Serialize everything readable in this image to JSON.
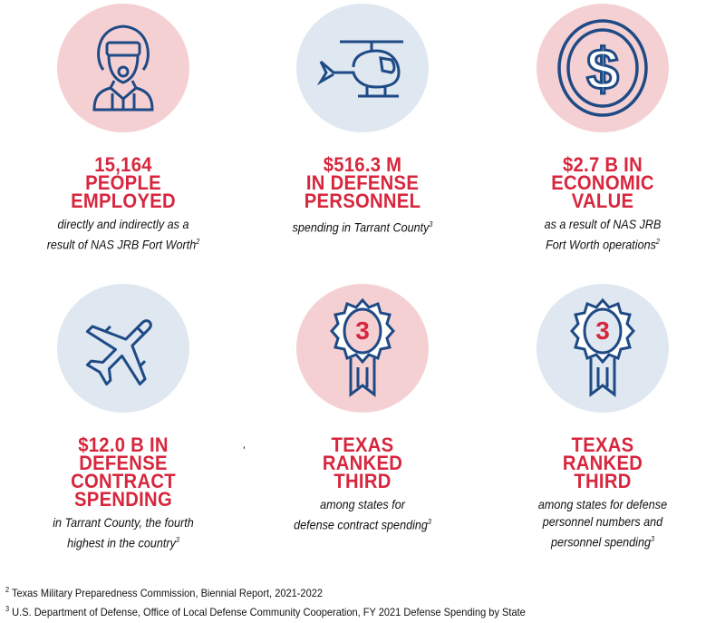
{
  "colors": {
    "pink": "#f5d0d3",
    "blue": "#dfe7f0",
    "navy": "#1e4a85",
    "red": "#d7263d"
  },
  "stats": [
    {
      "icon": "pilot-icon",
      "heading": [
        "15,164",
        "PEOPLE",
        "EMPLOYED"
      ],
      "text": [
        "directly and indirectly as a",
        "result of NAS JRB Fort Worth"
      ],
      "ref": "2"
    },
    {
      "icon": "helicopter-icon",
      "heading": [
        "$516.3 M",
        "IN DEFENSE",
        "PERSONNEL"
      ],
      "text": [
        "spending in Tarrant County"
      ],
      "ref": "3"
    },
    {
      "icon": "dollar-coin-icon",
      "heading": [
        "$2.7 B IN",
        "ECONOMIC",
        "VALUE"
      ],
      "text": [
        "as a result of NAS JRB",
        "Fort Worth operations"
      ],
      "ref": "2"
    },
    {
      "icon": "airplane-icon",
      "heading": [
        "$12.0 B IN",
        "DEFENSE",
        "CONTRACT",
        "SPENDING"
      ],
      "text": [
        "in Tarrant County, the fourth",
        "highest in the country"
      ],
      "ref": "3"
    },
    {
      "icon": "ribbon-award-icon",
      "badge": "3",
      "heading": [
        "TEXAS",
        "RANKED",
        "THIRD"
      ],
      "text": [
        "among states for",
        "defense contract spending"
      ],
      "ref": "3"
    },
    {
      "icon": "ribbon-award-icon",
      "badge": "3",
      "heading": [
        "TEXAS",
        "RANKED",
        "THIRD"
      ],
      "text": [
        "among states for defense",
        "personnel numbers and",
        "personnel spending"
      ],
      "ref": "3"
    }
  ],
  "stray_mark": "’",
  "footnotes": [
    {
      "num": "2",
      "text": "Texas Military Preparedness Commission, Biennial Report, 2021-2022"
    },
    {
      "num": "3",
      "text": "U.S. Department of Defense, Office of Local Defense Community Cooperation, FY 2021 Defense Spending by State"
    }
  ]
}
